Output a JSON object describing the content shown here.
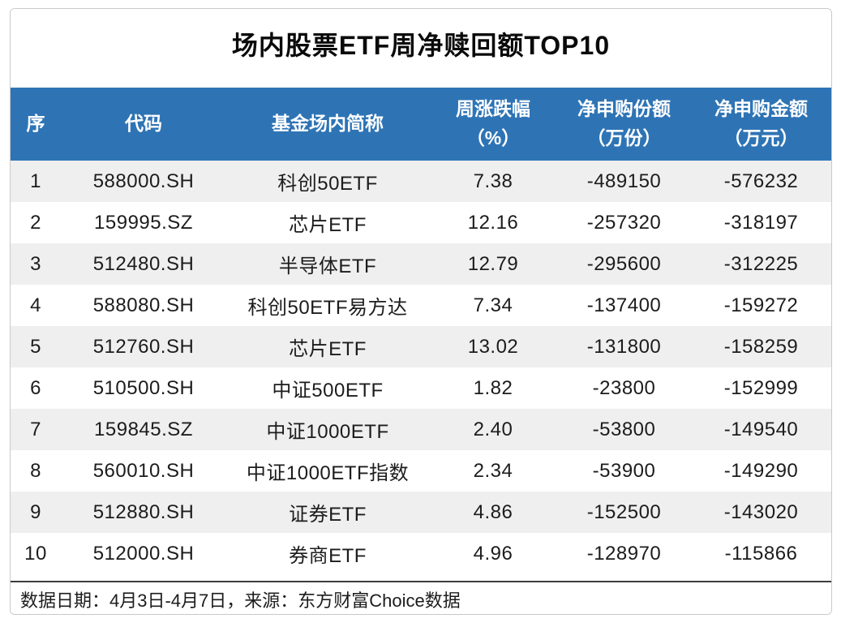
{
  "title": "场内股票ETF周净赎回额TOP10",
  "colors": {
    "header_bg": "#2E74B5",
    "header_text": "#FFFFFF",
    "stripe_bg": "#EFEFEF",
    "body_text": "#1C1C1C",
    "card_border": "#C9C9C9"
  },
  "table": {
    "columns": [
      {
        "key": "rank",
        "label": "序"
      },
      {
        "key": "code",
        "label": "代码"
      },
      {
        "key": "name",
        "label": "基金场内简称"
      },
      {
        "key": "change",
        "label": "周涨跌幅\n（%）"
      },
      {
        "key": "shares",
        "label": "净申购份额\n（万份）"
      },
      {
        "key": "amount",
        "label": "净申购金额\n（万元）"
      }
    ],
    "rows": [
      [
        "1",
        "588000.SH",
        "科创50ETF",
        "7.38",
        "-489150",
        "-576232"
      ],
      [
        "2",
        "159995.SZ",
        "芯片ETF",
        "12.16",
        "-257320",
        "-318197"
      ],
      [
        "3",
        "512480.SH",
        "半导体ETF",
        "12.79",
        "-295600",
        "-312225"
      ],
      [
        "4",
        "588080.SH",
        "科创50ETF易方达",
        "7.34",
        "-137400",
        "-159272"
      ],
      [
        "5",
        "512760.SH",
        "芯片ETF",
        "13.02",
        "-131800",
        "-158259"
      ],
      [
        "6",
        "510500.SH",
        "中证500ETF",
        "1.82",
        "-23800",
        "-152999"
      ],
      [
        "7",
        "159845.SZ",
        "中证1000ETF",
        "2.40",
        "-53800",
        "-149540"
      ],
      [
        "8",
        "560010.SH",
        "中证1000ETF指数",
        "2.34",
        "-53900",
        "-149290"
      ],
      [
        "9",
        "512880.SH",
        "证券ETF",
        "4.86",
        "-152500",
        "-143020"
      ],
      [
        "10",
        "512000.SH",
        "券商ETF",
        "4.96",
        "-128970",
        "-115866"
      ]
    ]
  },
  "footer": {
    "note": "数据日期：4月3日-4月7日，来源：东方财富Choice数据"
  },
  "chart_data": {
    "type": "table",
    "title": "场内股票ETF周净赎回额TOP10",
    "columns": [
      "序",
      "代码",
      "基金场内简称",
      "周涨跌幅（%）",
      "净申购份额（万份）",
      "净申购金额（万元）"
    ],
    "rows": [
      [
        1,
        "588000.SH",
        "科创50ETF",
        7.38,
        -489150,
        -576232
      ],
      [
        2,
        "159995.SZ",
        "芯片ETF",
        12.16,
        -257320,
        -318197
      ],
      [
        3,
        "512480.SH",
        "半导体ETF",
        12.79,
        -295600,
        -312225
      ],
      [
        4,
        "588080.SH",
        "科创50ETF易方达",
        7.34,
        -137400,
        -159272
      ],
      [
        5,
        "512760.SH",
        "芯片ETF",
        13.02,
        -131800,
        -158259
      ],
      [
        6,
        "510500.SH",
        "中证500ETF",
        1.82,
        -23800,
        -152999
      ],
      [
        7,
        "159845.SZ",
        "中证1000ETF",
        2.4,
        -53800,
        -149540
      ],
      [
        8,
        "560010.SH",
        "中证1000ETF指数",
        2.34,
        -53900,
        -149290
      ],
      [
        9,
        "512880.SH",
        "证券ETF",
        4.86,
        -152500,
        -143020
      ],
      [
        10,
        "512000.SH",
        "券商ETF",
        4.96,
        -128970,
        -115866
      ]
    ],
    "note": "数据日期：4月3日-4月7日，来源：东方财富Choice数据"
  }
}
